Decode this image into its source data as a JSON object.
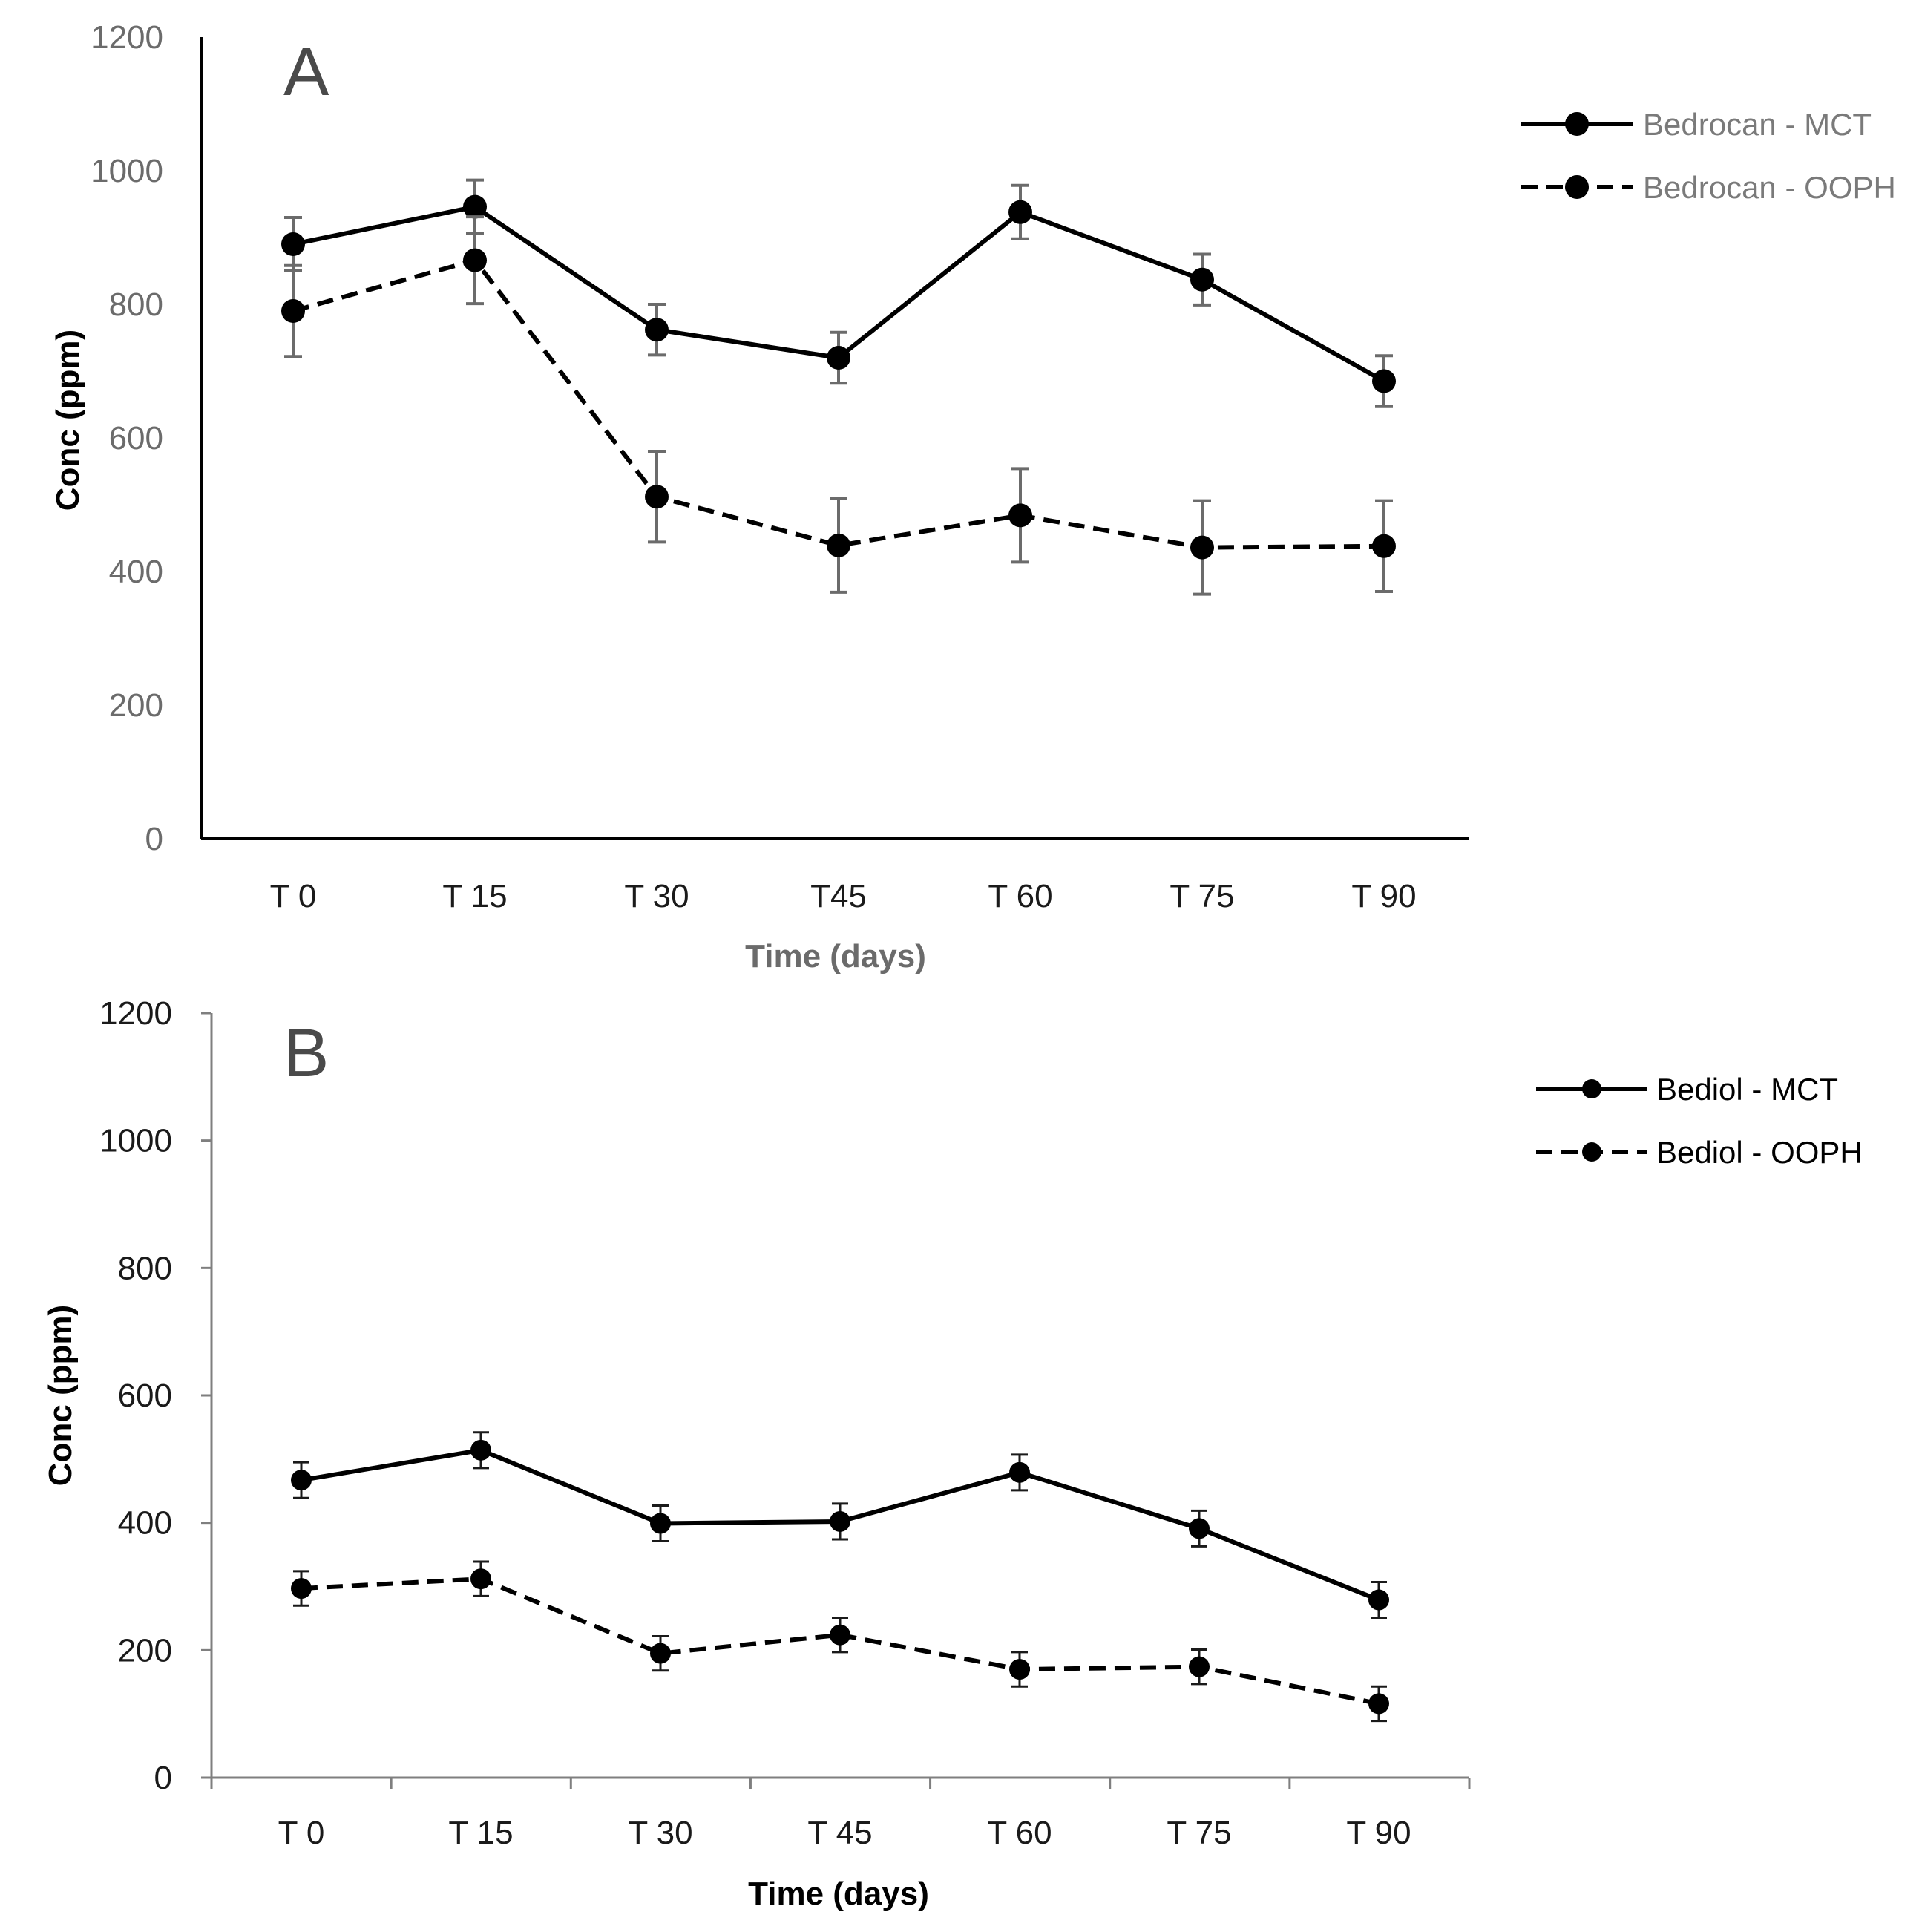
{
  "chart_data": [
    {
      "type": "line",
      "panel_label": "A",
      "categories": [
        "T 0",
        "T 15",
        "T 30",
        "T45",
        "T 60",
        "T 75",
        "T 90"
      ],
      "xlabel": "Time (days)",
      "ylabel": "Conc (ppm)",
      "ylim": [
        0,
        1200
      ],
      "yticks": [
        "0",
        "200",
        "400",
        "600",
        "800",
        "1000",
        "1200"
      ],
      "grid": false,
      "legend_position": "top-right",
      "series": [
        {
          "name": "Bedrocan - MCT",
          "style": "solid",
          "values": [
            890,
            946,
            762,
            720,
            938,
            837,
            685
          ],
          "errors": [
            40,
            40,
            38,
            38,
            40,
            38,
            38
          ]
        },
        {
          "name": "Bedrocan - OOPH",
          "style": "dashed",
          "values": [
            790,
            866,
            512,
            439,
            484,
            436,
            438
          ],
          "errors": [
            68,
            65,
            68,
            70,
            70,
            70,
            68
          ]
        }
      ]
    },
    {
      "type": "line",
      "panel_label": "B",
      "categories": [
        "T 0",
        "T 15",
        "T 30",
        "T 45",
        "T 60",
        "T 75",
        "T 90"
      ],
      "xlabel": "Time (days)",
      "ylabel": "Conc (ppm)",
      "ylim": [
        0,
        1200
      ],
      "yticks": [
        "0",
        "200",
        "400",
        "600",
        "800",
        "1000",
        "1200"
      ],
      "grid": false,
      "legend_position": "top-right",
      "series": [
        {
          "name": "Bediol - MCT",
          "style": "solid",
          "values": [
            467,
            514,
            399,
            402,
            479,
            391,
            279
          ],
          "errors": [
            28,
            28,
            28,
            28,
            28,
            28,
            28
          ]
        },
        {
          "name": "Bediol - OOPH",
          "style": "dashed",
          "values": [
            297,
            312,
            195,
            224,
            170,
            174,
            116
          ],
          "errors": [
            27,
            27,
            27,
            27,
            27,
            27,
            27
          ]
        }
      ]
    }
  ],
  "colors": {
    "line": "#000000",
    "error_bar_A": "#6b6b6b",
    "error_bar_B": "#1a1a1a",
    "axis_A": "#000000",
    "axis_B": "#7f7f7f",
    "legend_text_A": "#7a7a7a",
    "legend_text_B": "#000000"
  }
}
